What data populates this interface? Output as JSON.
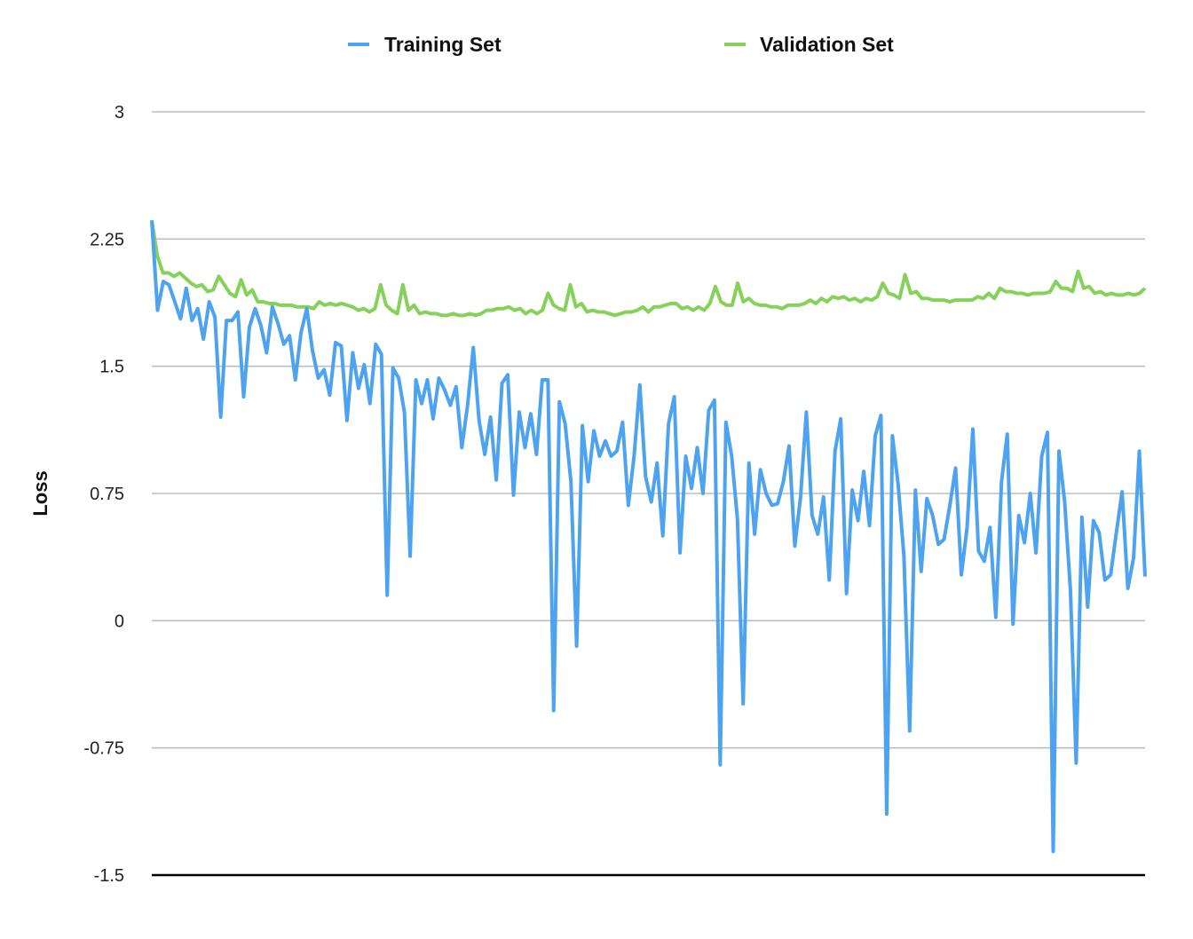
{
  "chart_data": {
    "type": "line",
    "ylabel": "Loss",
    "xlabel": "",
    "title": "",
    "ylim": [
      -1.5,
      3
    ],
    "yticks": [
      "3",
      "2.25",
      "1.5",
      "0.75",
      "0",
      "-0.75",
      "-1.5"
    ],
    "grid": true,
    "legend_position": "top",
    "colors": {
      "training": "#4da3f0",
      "validation": "#86d15a"
    },
    "series": [
      {
        "name": "Training Set",
        "values": [
          2.36,
          1.83,
          2.0,
          1.98,
          1.88,
          1.78,
          1.96,
          1.77,
          1.84,
          1.66,
          1.88,
          1.79,
          1.2,
          1.77,
          1.77,
          1.82,
          1.32,
          1.73,
          1.84,
          1.74,
          1.58,
          1.85,
          1.75,
          1.63,
          1.68,
          1.42,
          1.7,
          1.84,
          1.59,
          1.43,
          1.48,
          1.33,
          1.64,
          1.62,
          1.18,
          1.58,
          1.37,
          1.51,
          1.28,
          1.63,
          1.57,
          0.15,
          1.49,
          1.43,
          1.23,
          0.38,
          1.42,
          1.28,
          1.42,
          1.19,
          1.43,
          1.36,
          1.27,
          1.38,
          1.02,
          1.27,
          1.61,
          1.18,
          0.98,
          1.2,
          0.83,
          1.4,
          1.45,
          0.74,
          1.23,
          1.02,
          1.22,
          0.98,
          1.42,
          1.42,
          -0.53,
          1.29,
          1.16,
          0.82,
          -0.15,
          1.15,
          0.82,
          1.12,
          0.97,
          1.06,
          0.97,
          1.0,
          1.17,
          0.68,
          0.97,
          1.39,
          0.85,
          0.7,
          0.93,
          0.5,
          1.16,
          1.32,
          0.4,
          0.97,
          0.78,
          1.02,
          0.75,
          1.24,
          1.3,
          -0.85,
          1.17,
          0.97,
          0.6,
          -0.49,
          0.93,
          0.51,
          0.89,
          0.75,
          0.68,
          0.69,
          0.82,
          1.03,
          0.44,
          0.73,
          1.23,
          0.62,
          0.51,
          0.73,
          0.24,
          1.0,
          1.19,
          0.16,
          0.77,
          0.59,
          0.88,
          0.56,
          1.09,
          1.21,
          -1.14,
          1.09,
          0.8,
          0.38,
          -0.65,
          0.77,
          0.29,
          0.72,
          0.62,
          0.45,
          0.48,
          0.68,
          0.9,
          0.27,
          0.55,
          1.13,
          0.41,
          0.35,
          0.55,
          0.02,
          0.82,
          1.1,
          -0.02,
          0.62,
          0.46,
          0.75,
          0.4,
          0.97,
          1.11,
          -1.36,
          1.0,
          0.7,
          0.18,
          -0.84,
          0.61,
          0.08,
          0.59,
          0.52,
          0.24,
          0.27,
          0.52,
          0.76,
          0.19,
          0.37,
          1.0,
          0.26
        ]
      },
      {
        "name": "Validation Set",
        "values": [
          2.36,
          2.15,
          2.05,
          2.05,
          2.03,
          2.05,
          2.02,
          1.99,
          1.97,
          1.98,
          1.94,
          1.95,
          2.03,
          1.98,
          1.93,
          1.91,
          2.01,
          1.92,
          1.95,
          1.88,
          1.88,
          1.87,
          1.87,
          1.86,
          1.86,
          1.86,
          1.85,
          1.85,
          1.85,
          1.84,
          1.88,
          1.86,
          1.87,
          1.86,
          1.87,
          1.86,
          1.85,
          1.83,
          1.84,
          1.82,
          1.84,
          1.98,
          1.86,
          1.83,
          1.81,
          1.98,
          1.83,
          1.86,
          1.81,
          1.82,
          1.81,
          1.81,
          1.8,
          1.8,
          1.81,
          1.8,
          1.8,
          1.81,
          1.8,
          1.81,
          1.83,
          1.83,
          1.84,
          1.84,
          1.85,
          1.83,
          1.84,
          1.81,
          1.83,
          1.81,
          1.83,
          1.93,
          1.86,
          1.84,
          1.83,
          1.98,
          1.85,
          1.87,
          1.82,
          1.83,
          1.82,
          1.82,
          1.81,
          1.8,
          1.81,
          1.82,
          1.82,
          1.83,
          1.85,
          1.82,
          1.85,
          1.85,
          1.86,
          1.87,
          1.87,
          1.84,
          1.85,
          1.83,
          1.85,
          1.83,
          1.87,
          1.97,
          1.88,
          1.86,
          1.86,
          1.99,
          1.88,
          1.9,
          1.87,
          1.86,
          1.86,
          1.85,
          1.85,
          1.84,
          1.86,
          1.86,
          1.86,
          1.87,
          1.89,
          1.87,
          1.9,
          1.88,
          1.91,
          1.9,
          1.91,
          1.89,
          1.9,
          1.88,
          1.9,
          1.89,
          1.91,
          1.99,
          1.93,
          1.92,
          1.9,
          2.04,
          1.93,
          1.94,
          1.9,
          1.9,
          1.89,
          1.89,
          1.89,
          1.88,
          1.89,
          1.89,
          1.89,
          1.89,
          1.91,
          1.9,
          1.93,
          1.9,
          1.96,
          1.94,
          1.94,
          1.93,
          1.93,
          1.92,
          1.93,
          1.93,
          1.93,
          1.94,
          2.0,
          1.96,
          1.96,
          1.94,
          2.06,
          1.96,
          1.97,
          1.93,
          1.94,
          1.92,
          1.93,
          1.92,
          1.92,
          1.93,
          1.92,
          1.93,
          1.96
        ]
      }
    ]
  }
}
